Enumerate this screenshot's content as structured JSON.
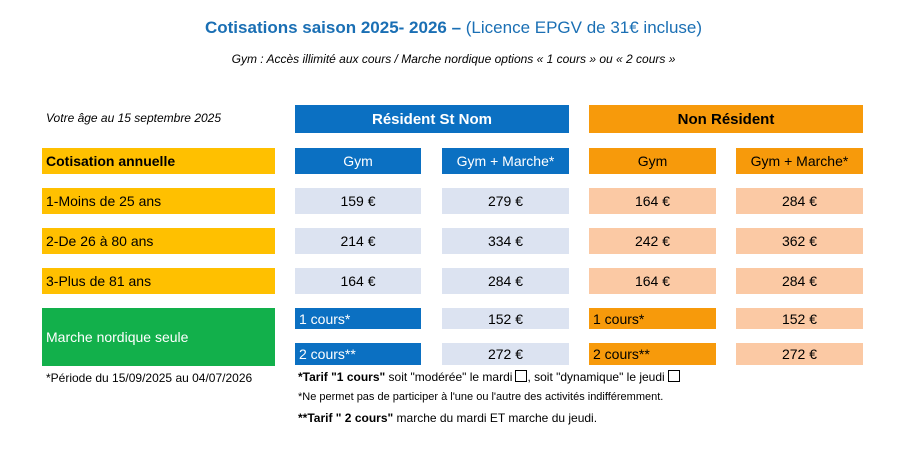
{
  "title": {
    "bold_part": "Cotisations saison 2025- 2026 –",
    "normal_part": " (Licence EPGV de 31€ incluse)"
  },
  "subtitle": "Gym : Accès illimité aux cours / Marche nordique options « 1 cours » ou « 2 cours »",
  "age_label": "Votre âge au 15 septembre 2025",
  "groups": {
    "resident": "Résident St Nom",
    "non_resident": "Non Résident"
  },
  "columns": {
    "gym": "Gym",
    "gym_marche": "Gym + Marche*"
  },
  "row_header": "Cotisation annuelle",
  "rows": [
    {
      "label": "1-Moins de 25 ans",
      "res_gym": "159 €",
      "res_gm": "279 €",
      "nres_gym": "164 €",
      "nres_gm": "284 €"
    },
    {
      "label": "2-De 26 à 80 ans",
      "res_gym": "214 €",
      "res_gm": "334 €",
      "nres_gym": "242 €",
      "nres_gm": "362 €"
    },
    {
      "label": "3-Plus de 81 ans",
      "res_gym": "164 €",
      "res_gm": "284 €",
      "nres_gym": "164 €",
      "nres_gm": "284 €"
    }
  ],
  "marche": {
    "label": "Marche nordique seule",
    "options": [
      {
        "label": "1 cours*",
        "res_price": "152 €",
        "nres_price": "152 €"
      },
      {
        "label": "2 cours**",
        "res_price": "272 €",
        "nres_price": "272 €"
      }
    ]
  },
  "notes": {
    "period": "*Période du 15/09/2025 au 04/07/2026",
    "tarif1_bold": "*Tarif \"1 cours\"",
    "tarif1_text": " soit \"modérée\" le mardi",
    "tarif1_text2": ", soit \"dynamique\" le jeudi",
    "no_switch": "*Ne permet pas de participer à l'une ou l'autre des activités indifféremment.",
    "tarif2_bold": "**Tarif \" 2 cours\"",
    "tarif2_text": " marche du mardi ET marche du jeudi."
  },
  "colors": {
    "title_blue": "#1a6fb4",
    "resident_blue": "#0b70c2",
    "non_resident_orange": "#f79a0b",
    "label_yellow": "#ffc000",
    "marche_green": "#12b04b",
    "resident_cell": "#dce3f1",
    "non_resident_cell": "#fbc9a4"
  }
}
